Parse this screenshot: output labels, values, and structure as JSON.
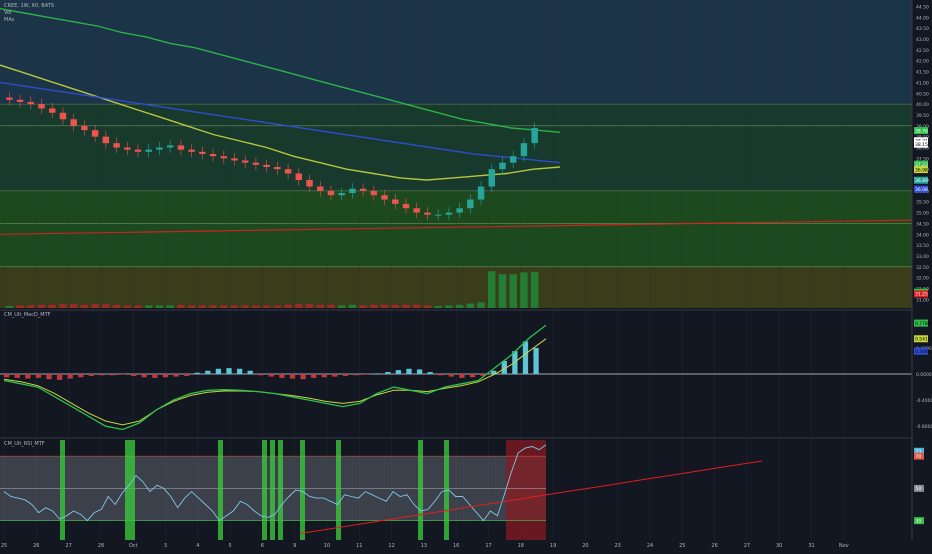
{
  "header": {
    "symbol": "CREE, 1W, 60, BATS",
    "vol_label": "Vol",
    "ma_label": "MAs",
    "macd_title": "CM_Ult_MacD_MTF",
    "rsi_title": "CM_Ult_RSI_MTF"
  },
  "colors": {
    "background": "#131722",
    "bull": "#26a69a",
    "bear": "#ef5350",
    "ma_green": "#2fbf4a",
    "ma_yellow": "#c8d640",
    "ma_blue": "#2f4fd8",
    "trend_red": "#e01e1e"
  },
  "chart_data": [
    {
      "type": "candlestick",
      "title": "CREE, 1W, 60, BATS",
      "x_ticks": [
        "25",
        "26",
        "27",
        "28",
        "Oct",
        "3",
        "4",
        "5",
        "6",
        "9",
        "10",
        "11",
        "12",
        "13",
        "16",
        "17",
        "18",
        "19",
        "20",
        "23",
        "24",
        "25",
        "26",
        "27",
        "30",
        "31",
        "Nov"
      ],
      "y_ticks": [
        44.5,
        44.0,
        43.5,
        43.0,
        42.5,
        42.0,
        41.5,
        41.0,
        40.5,
        40.0,
        39.5,
        39.0,
        38.5,
        38.0,
        37.5,
        37.0,
        36.5,
        36.0,
        35.5,
        35.0,
        34.5,
        34.0,
        33.5,
        33.0,
        32.5,
        32.0,
        31.5,
        31.0
      ],
      "ylim": [
        30.6,
        44.8
      ],
      "close_series": [
        40.2,
        40.1,
        40.0,
        39.8,
        39.6,
        39.3,
        39.0,
        38.8,
        38.5,
        38.2,
        38.0,
        37.9,
        37.8,
        37.9,
        38.0,
        38.1,
        37.9,
        37.8,
        37.7,
        37.6,
        37.5,
        37.4,
        37.3,
        37.2,
        37.1,
        37.0,
        36.8,
        36.5,
        36.2,
        36.0,
        35.8,
        35.9,
        36.1,
        36.0,
        35.8,
        35.6,
        35.4,
        35.2,
        35.0,
        34.9,
        34.9,
        35.0,
        35.2,
        35.6,
        36.2,
        37.0,
        37.3,
        37.6,
        38.2,
        38.9
      ],
      "moving_averages": [
        {
          "color": "#2fbf4a",
          "values": [
            44.4,
            44.2,
            44.0,
            43.8,
            43.6,
            43.3,
            43.1,
            42.8,
            42.6,
            42.3,
            42.0,
            41.7,
            41.4,
            41.1,
            40.8,
            40.5,
            40.2,
            39.9,
            39.6,
            39.3,
            39.1,
            38.9,
            38.8,
            38.7
          ]
        },
        {
          "color": "#c8d640",
          "values": [
            41.8,
            41.4,
            41.0,
            40.6,
            40.2,
            39.8,
            39.4,
            39.0,
            38.6,
            38.3,
            38.0,
            37.6,
            37.3,
            37.0,
            36.8,
            36.6,
            36.5,
            36.6,
            36.7,
            36.8,
            37.0,
            37.1
          ]
        },
        {
          "color": "#2f4fd8",
          "values": [
            41.0,
            40.7,
            40.4,
            40.1,
            39.8,
            39.5,
            39.2,
            38.9,
            38.6,
            38.3,
            38.0,
            37.7,
            37.5,
            37.3
          ]
        },
        {
          "color": "#e01e1e",
          "values": [
            34.0,
            34.05,
            34.1,
            34.15,
            34.2,
            34.25,
            34.3,
            34.35,
            34.4,
            34.45,
            34.5,
            34.55,
            34.6,
            34.65
          ]
        }
      ],
      "price_labels": [
        "38.78",
        "38.31",
        "38.15",
        "37.23",
        "36.98",
        "36.49",
        "36.08",
        "31.33",
        "31.25"
      ],
      "horizontal_levels": [
        40.0,
        39.0,
        36.0,
        34.5,
        32.5
      ]
    },
    {
      "type": "histogram",
      "title": "CM_Ult_MacD_MTF",
      "y_ticks": [
        0.4,
        0.0,
        -0.4,
        -0.8
      ],
      "price_labels": [
        "0.7789",
        "0.5413",
        "0.3484"
      ],
      "histogram": [
        -0.05,
        -0.06,
        -0.07,
        -0.06,
        -0.08,
        -0.09,
        -0.07,
        -0.05,
        -0.03,
        -0.02,
        -0.02,
        -0.01,
        -0.03,
        -0.05,
        -0.06,
        -0.05,
        -0.04,
        -0.03,
        0.02,
        0.05,
        0.08,
        0.09,
        0.08,
        0.05,
        -0.02,
        -0.04,
        -0.06,
        -0.07,
        -0.08,
        -0.06,
        -0.05,
        -0.04,
        -0.03,
        -0.02,
        -0.01,
        0.01,
        0.03,
        0.06,
        0.08,
        0.07,
        0.03,
        -0.02,
        -0.04,
        -0.06,
        -0.05,
        -0.03,
        0.05,
        0.2,
        0.35,
        0.5,
        0.4
      ],
      "macd_line": [
        -0.1,
        -0.15,
        -0.2,
        -0.35,
        -0.5,
        -0.65,
        -0.8,
        -0.85,
        -0.75,
        -0.55,
        -0.4,
        -0.3,
        -0.25,
        -0.24,
        -0.25,
        -0.27,
        -0.3,
        -0.35,
        -0.4,
        -0.45,
        -0.5,
        -0.45,
        -0.3,
        -0.2,
        -0.25,
        -0.3,
        -0.2,
        -0.15,
        -0.1,
        0.1,
        0.3,
        0.55,
        0.75
      ],
      "signal_line": [
        -0.08,
        -0.12,
        -0.18,
        -0.3,
        -0.45,
        -0.6,
        -0.72,
        -0.78,
        -0.72,
        -0.55,
        -0.42,
        -0.33,
        -0.28,
        -0.26,
        -0.26,
        -0.27,
        -0.3,
        -0.33,
        -0.37,
        -0.42,
        -0.45,
        -0.42,
        -0.32,
        -0.25,
        -0.25,
        -0.27,
        -0.22,
        -0.18,
        -0.12,
        0.0,
        0.15,
        0.35,
        0.54
      ]
    },
    {
      "type": "line",
      "title": "CM_Ult_RSI_MTF",
      "y_ticks": [
        70,
        50,
        30
      ],
      "price_labels": [
        "73",
        "70",
        "50",
        "30"
      ],
      "values": [
        48,
        45,
        44,
        43,
        40,
        35,
        38,
        36,
        31,
        33,
        36,
        34,
        30,
        35,
        37,
        45,
        40,
        47,
        52,
        58,
        54,
        48,
        52,
        50,
        45,
        38,
        44,
        48,
        44,
        40,
        36,
        30,
        33,
        36,
        42,
        40,
        36,
        33,
        32,
        34,
        40,
        45,
        49,
        48,
        45,
        44,
        44,
        42,
        40,
        46,
        45,
        44,
        48,
        46,
        44,
        42,
        48,
        45,
        46,
        40,
        36,
        37,
        42,
        48,
        49,
        45,
        45,
        40,
        35,
        30,
        36,
        33,
        46,
        60,
        72,
        75,
        76,
        74,
        77
      ],
      "trend_line": [
        22,
        25,
        28,
        31,
        34,
        37,
        40,
        43,
        46,
        49,
        52,
        55,
        58,
        61,
        64,
        67
      ]
    }
  ]
}
